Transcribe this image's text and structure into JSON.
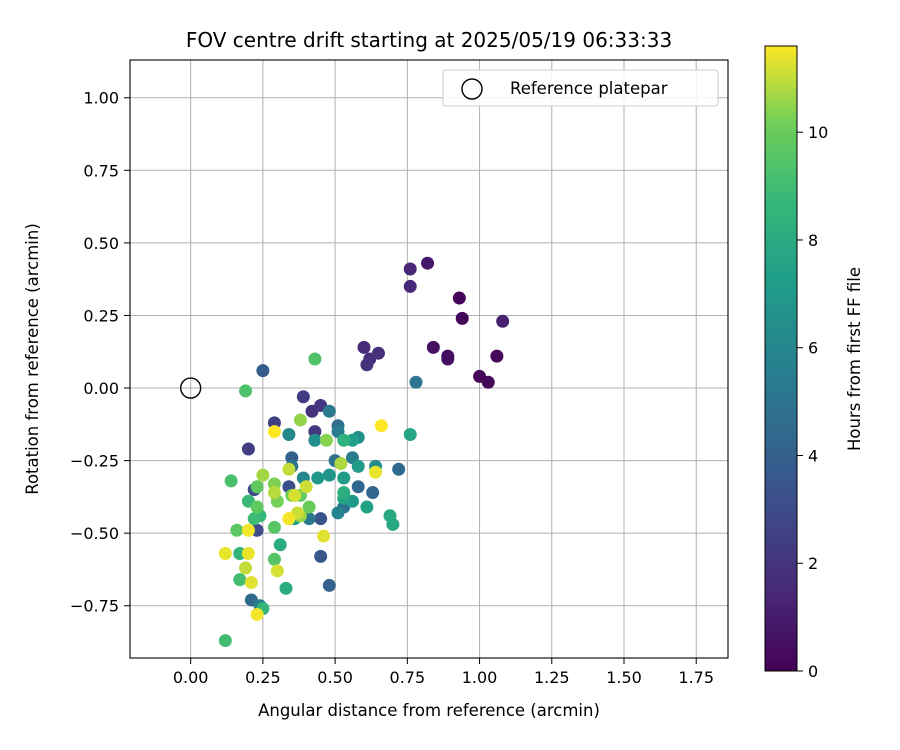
{
  "chart_data": {
    "type": "scatter",
    "title": "FOV centre drift starting at 2025/05/19 06:33:33",
    "xlabel": "Angular distance from reference (arcmin)",
    "ylabel": "Rotation from reference (arcmin)",
    "xlim": [
      -0.21,
      1.86
    ],
    "ylim": [
      -0.93,
      1.13
    ],
    "xticks": [
      0.0,
      0.25,
      0.5,
      0.75,
      1.0,
      1.25,
      1.5,
      1.75
    ],
    "xtick_labels": [
      "0.00",
      "0.25",
      "0.50",
      "0.75",
      "1.00",
      "1.25",
      "1.50",
      "1.75"
    ],
    "yticks": [
      -0.75,
      -0.5,
      -0.25,
      0.0,
      0.25,
      0.5,
      0.75,
      1.0
    ],
    "ytick_labels": [
      "−0.75",
      "−0.50",
      "−0.25",
      "0.00",
      "0.25",
      "0.50",
      "0.75",
      "1.00"
    ],
    "grid": true,
    "legend": {
      "placement": "top-right",
      "entries": [
        {
          "label": "Reference platepar",
          "marker": "open-circle"
        }
      ]
    },
    "reference_point": {
      "x": 0.0,
      "y": 0.0
    },
    "colorbar": {
      "label": "Hours from first FF file",
      "colormap": "viridis",
      "range": [
        0,
        11.6
      ],
      "ticks": [
        0,
        2,
        4,
        6,
        8,
        10
      ],
      "tick_labels": [
        "0",
        "2",
        "4",
        "6",
        "8",
        "10"
      ]
    },
    "points": [
      {
        "x": 0.93,
        "y": 0.31,
        "c": 0.2
      },
      {
        "x": 0.94,
        "y": 0.24,
        "c": 0.2
      },
      {
        "x": 1.0,
        "y": 0.04,
        "c": 0.2
      },
      {
        "x": 1.03,
        "y": 0.02,
        "c": 0.3
      },
      {
        "x": 1.06,
        "y": 0.11,
        "c": 0.3
      },
      {
        "x": 0.89,
        "y": 0.1,
        "c": 0.5
      },
      {
        "x": 0.89,
        "y": 0.11,
        "c": 0.5
      },
      {
        "x": 0.84,
        "y": 0.14,
        "c": 0.6
      },
      {
        "x": 0.82,
        "y": 0.43,
        "c": 0.8
      },
      {
        "x": 1.08,
        "y": 0.23,
        "c": 1.2
      },
      {
        "x": 0.76,
        "y": 0.41,
        "c": 1.4
      },
      {
        "x": 0.76,
        "y": 0.35,
        "c": 1.5
      },
      {
        "x": 0.6,
        "y": 0.14,
        "c": 1.6
      },
      {
        "x": 0.62,
        "y": 0.1,
        "c": 1.7
      },
      {
        "x": 0.65,
        "y": 0.12,
        "c": 1.8
      },
      {
        "x": 0.61,
        "y": 0.08,
        "c": 1.9
      },
      {
        "x": 0.42,
        "y": -0.08,
        "c": 1.9
      },
      {
        "x": 0.45,
        "y": -0.06,
        "c": 2.0
      },
      {
        "x": 0.43,
        "y": -0.15,
        "c": 2.1
      },
      {
        "x": 0.39,
        "y": -0.03,
        "c": 2.3
      },
      {
        "x": 0.2,
        "y": -0.21,
        "c": 2.4
      },
      {
        "x": 0.29,
        "y": -0.12,
        "c": 2.5
      },
      {
        "x": 0.22,
        "y": -0.35,
        "c": 3.0
      },
      {
        "x": 0.23,
        "y": -0.49,
        "c": 3.1
      },
      {
        "x": 0.34,
        "y": -0.34,
        "c": 3.2
      },
      {
        "x": 0.45,
        "y": -0.45,
        "c": 3.3
      },
      {
        "x": 0.45,
        "y": -0.58,
        "c": 3.6
      },
      {
        "x": 0.25,
        "y": 0.06,
        "c": 3.8
      },
      {
        "x": 0.48,
        "y": -0.68,
        "c": 4.0
      },
      {
        "x": 0.35,
        "y": -0.24,
        "c": 4.1
      },
      {
        "x": 0.63,
        "y": -0.36,
        "c": 4.2
      },
      {
        "x": 0.58,
        "y": -0.34,
        "c": 4.3
      },
      {
        "x": 0.72,
        "y": -0.28,
        "c": 4.4
      },
      {
        "x": 0.21,
        "y": -0.73,
        "c": 4.5
      },
      {
        "x": 0.51,
        "y": -0.13,
        "c": 4.7
      },
      {
        "x": 0.5,
        "y": -0.25,
        "c": 4.8
      },
      {
        "x": 0.53,
        "y": -0.41,
        "c": 4.9
      },
      {
        "x": 0.35,
        "y": -0.27,
        "c": 5.0
      },
      {
        "x": 0.78,
        "y": 0.02,
        "c": 5.1
      },
      {
        "x": 0.41,
        "y": -0.45,
        "c": 5.2
      },
      {
        "x": 0.48,
        "y": -0.08,
        "c": 5.3
      },
      {
        "x": 0.24,
        "y": -0.75,
        "c": 5.4
      },
      {
        "x": 0.51,
        "y": -0.15,
        "c": 5.5
      },
      {
        "x": 0.56,
        "y": -0.24,
        "c": 5.6
      },
      {
        "x": 0.51,
        "y": -0.43,
        "c": 5.8
      },
      {
        "x": 0.39,
        "y": -0.31,
        "c": 6.0
      },
      {
        "x": 0.34,
        "y": -0.16,
        "c": 6.1
      },
      {
        "x": 0.64,
        "y": -0.27,
        "c": 6.3
      },
      {
        "x": 0.43,
        "y": -0.18,
        "c": 6.5
      },
      {
        "x": 0.58,
        "y": -0.17,
        "c": 6.6
      },
      {
        "x": 0.48,
        "y": -0.3,
        "c": 6.7
      },
      {
        "x": 0.44,
        "y": -0.31,
        "c": 6.9
      },
      {
        "x": 0.56,
        "y": -0.39,
        "c": 7.0
      },
      {
        "x": 0.58,
        "y": -0.27,
        "c": 7.1
      },
      {
        "x": 0.53,
        "y": -0.31,
        "c": 7.2
      },
      {
        "x": 0.56,
        "y": -0.18,
        "c": 7.3
      },
      {
        "x": 0.36,
        "y": -0.45,
        "c": 7.4
      },
      {
        "x": 0.61,
        "y": -0.41,
        "c": 7.5
      },
      {
        "x": 0.53,
        "y": -0.38,
        "c": 7.6
      },
      {
        "x": 0.76,
        "y": -0.16,
        "c": 7.7
      },
      {
        "x": 0.7,
        "y": -0.47,
        "c": 7.8
      },
      {
        "x": 0.69,
        "y": -0.44,
        "c": 7.9
      },
      {
        "x": 0.31,
        "y": -0.54,
        "c": 8.0
      },
      {
        "x": 0.33,
        "y": -0.69,
        "c": 8.1
      },
      {
        "x": 0.53,
        "y": -0.36,
        "c": 8.2
      },
      {
        "x": 0.53,
        "y": -0.18,
        "c": 8.4
      },
      {
        "x": 0.17,
        "y": -0.57,
        "c": 8.5
      },
      {
        "x": 0.25,
        "y": -0.76,
        "c": 8.6
      },
      {
        "x": 0.24,
        "y": -0.44,
        "c": 8.7
      },
      {
        "x": 0.2,
        "y": -0.39,
        "c": 8.8
      },
      {
        "x": 0.22,
        "y": -0.45,
        "c": 8.9
      },
      {
        "x": 0.12,
        "y": -0.87,
        "c": 9.0
      },
      {
        "x": 0.17,
        "y": -0.66,
        "c": 9.1
      },
      {
        "x": 0.14,
        "y": -0.32,
        "c": 9.2
      },
      {
        "x": 0.19,
        "y": -0.01,
        "c": 9.3
      },
      {
        "x": 0.43,
        "y": 0.1,
        "c": 9.4
      },
      {
        "x": 0.29,
        "y": -0.59,
        "c": 9.5
      },
      {
        "x": 0.29,
        "y": -0.48,
        "c": 9.6
      },
      {
        "x": 0.16,
        "y": -0.49,
        "c": 9.7
      },
      {
        "x": 0.23,
        "y": -0.41,
        "c": 9.8
      },
      {
        "x": 0.23,
        "y": -0.34,
        "c": 9.8
      },
      {
        "x": 0.38,
        "y": -0.37,
        "c": 9.9
      },
      {
        "x": 0.41,
        "y": -0.41,
        "c": 10.0
      },
      {
        "x": 0.35,
        "y": -0.37,
        "c": 10.1
      },
      {
        "x": 0.3,
        "y": -0.39,
        "c": 10.2
      },
      {
        "x": 0.29,
        "y": -0.33,
        "c": 10.3
      },
      {
        "x": 0.47,
        "y": -0.18,
        "c": 10.4
      },
      {
        "x": 0.38,
        "y": -0.11,
        "c": 10.5
      },
      {
        "x": 0.38,
        "y": -0.44,
        "c": 10.6
      },
      {
        "x": 0.25,
        "y": -0.3,
        "c": 10.7
      },
      {
        "x": 0.52,
        "y": -0.26,
        "c": 10.8
      },
      {
        "x": 0.29,
        "y": -0.36,
        "c": 10.9
      },
      {
        "x": 0.34,
        "y": -0.28,
        "c": 11.0
      },
      {
        "x": 0.19,
        "y": -0.62,
        "c": 11.0
      },
      {
        "x": 0.4,
        "y": -0.34,
        "c": 11.1
      },
      {
        "x": 0.37,
        "y": -0.43,
        "c": 11.1
      },
      {
        "x": 0.36,
        "y": -0.37,
        "c": 11.2
      },
      {
        "x": 0.3,
        "y": -0.63,
        "c": 11.2
      },
      {
        "x": 0.21,
        "y": -0.67,
        "c": 11.3
      },
      {
        "x": 0.46,
        "y": -0.51,
        "c": 11.3
      },
      {
        "x": 0.12,
        "y": -0.57,
        "c": 11.4
      },
      {
        "x": 0.2,
        "y": -0.57,
        "c": 11.4
      },
      {
        "x": 0.64,
        "y": -0.29,
        "c": 11.4
      },
      {
        "x": 0.2,
        "y": -0.49,
        "c": 11.5
      },
      {
        "x": 0.34,
        "y": -0.45,
        "c": 11.5
      },
      {
        "x": 0.23,
        "y": -0.78,
        "c": 11.5
      },
      {
        "x": 0.29,
        "y": -0.15,
        "c": 11.6
      },
      {
        "x": 0.66,
        "y": -0.13,
        "c": 11.6
      }
    ]
  }
}
